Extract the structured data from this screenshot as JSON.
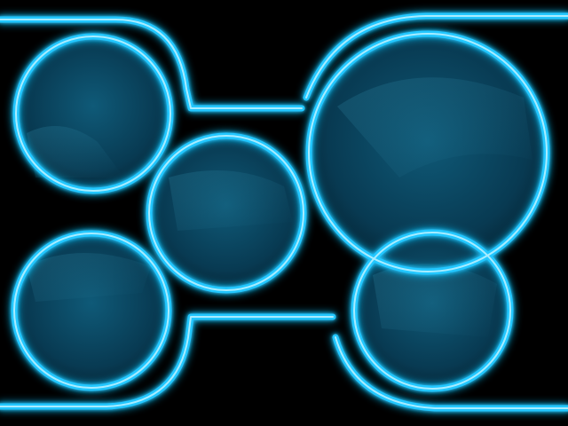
{
  "colors": {
    "background": "#000000",
    "neon_core": "#bff3ff",
    "neon_main": "#22c7ff",
    "neon_glow": "#0a8fff",
    "lens_center": "#0f5a78",
    "lens_edge": "#04202e",
    "lens_highlight": "#2a7f9c"
  },
  "lenses": [
    {
      "name": "lens-top-left"
    },
    {
      "name": "lens-center"
    },
    {
      "name": "lens-bottom-left"
    },
    {
      "name": "lens-large-right"
    },
    {
      "name": "lens-bottom-right"
    }
  ]
}
